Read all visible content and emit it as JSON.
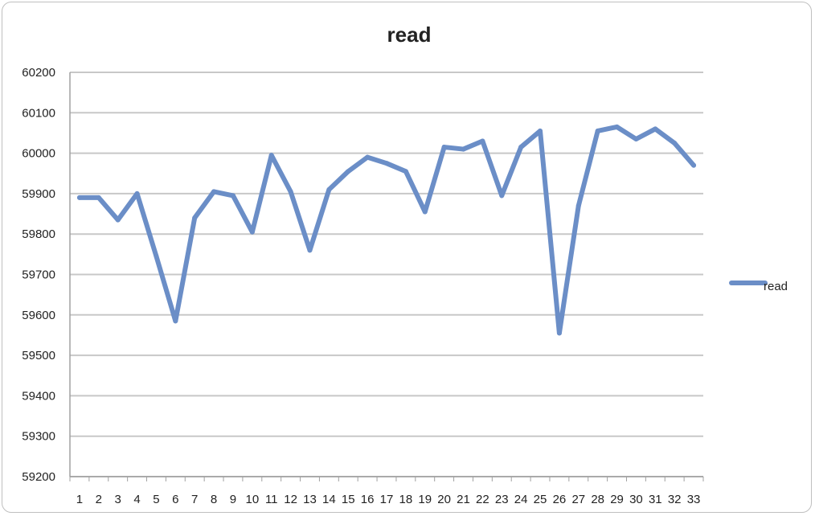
{
  "chart_data": {
    "type": "line",
    "title": "read",
    "xlabel": "",
    "ylabel": "",
    "categories": [
      "1",
      "2",
      "3",
      "4",
      "5",
      "6",
      "7",
      "8",
      "9",
      "10",
      "11",
      "12",
      "13",
      "14",
      "15",
      "16",
      "17",
      "18",
      "19",
      "20",
      "21",
      "22",
      "23",
      "24",
      "25",
      "26",
      "27",
      "28",
      "29",
      "30",
      "31",
      "32",
      "33"
    ],
    "series": [
      {
        "name": "read",
        "values": [
          59890,
          59890,
          59835,
          59900,
          59745,
          59585,
          59840,
          59905,
          59895,
          59805,
          59995,
          59905,
          59760,
          59910,
          59955,
          59990,
          59975,
          59955,
          59855,
          60015,
          60010,
          60030,
          59895,
          60015,
          60055,
          59555,
          59870,
          60055,
          60065,
          60035,
          60060,
          60025,
          59970
        ]
      }
    ],
    "ylim": [
      59200,
      60200
    ],
    "ystep": 100,
    "yticks": [
      "59200",
      "59300",
      "59400",
      "59500",
      "59600",
      "59700",
      "59800",
      "59900",
      "60000",
      "60100",
      "60200"
    ],
    "grid": true,
    "legend_position": "right",
    "colors": {
      "series": "#6b8ec7",
      "grid": "#c8c8c8",
      "axis": "#a0a0a0"
    }
  }
}
